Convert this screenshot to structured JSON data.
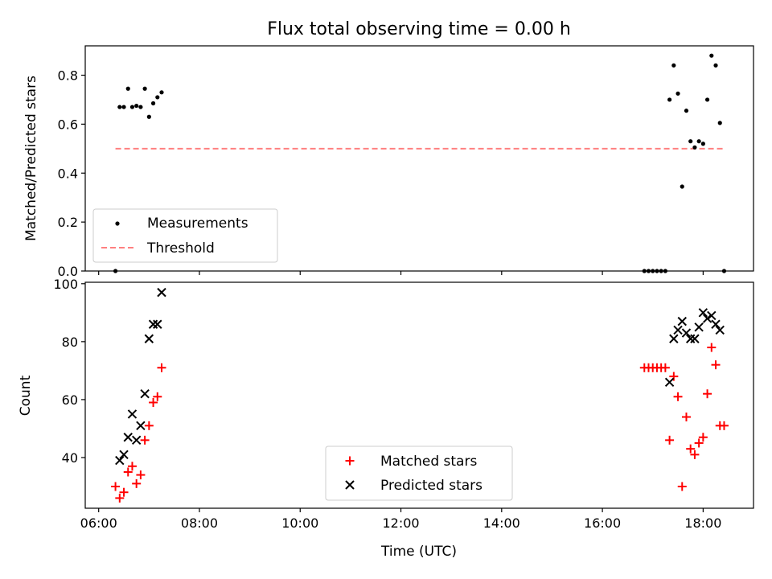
{
  "title": "Flux total observing time = 0.00 h",
  "xlabel": "Time (UTC)",
  "x_ticks": [
    "06:00",
    "08:00",
    "10:00",
    "12:00",
    "14:00",
    "16:00",
    "18:00"
  ],
  "chart_data": [
    {
      "type": "scatter",
      "ylabel": "Matched/Predicted stars",
      "xlim": [
        "05:44",
        "19:00"
      ],
      "ylim": [
        0,
        0.92
      ],
      "y_ticks": [
        "0.0",
        "0.2",
        "0.4",
        "0.6",
        "0.8"
      ],
      "legend_position": "lower-left",
      "legend": [
        {
          "label": "Measurements",
          "marker": "dot",
          "color": "#000000"
        },
        {
          "label": "Threshold",
          "marker": "dashed-line",
          "color": "#ff8080"
        }
      ],
      "series": [
        {
          "name": "Measurements",
          "color": "#000000",
          "points": [
            [
              "06:20",
              0.0
            ],
            [
              "06:25",
              0.67
            ],
            [
              "06:30",
              0.67
            ],
            [
              "06:35",
              0.745
            ],
            [
              "06:40",
              0.67
            ],
            [
              "06:45",
              0.675
            ],
            [
              "06:50",
              0.67
            ],
            [
              "06:55",
              0.745
            ],
            [
              "07:00",
              0.63
            ],
            [
              "07:05",
              0.685
            ],
            [
              "07:10",
              0.71
            ],
            [
              "07:15",
              0.73
            ],
            [
              "16:50",
              0.0
            ],
            [
              "16:55",
              0.0
            ],
            [
              "17:00",
              0.0
            ],
            [
              "17:05",
              0.0
            ],
            [
              "17:10",
              0.0
            ],
            [
              "17:15",
              0.0
            ],
            [
              "17:20",
              0.7
            ],
            [
              "17:25",
              0.84
            ],
            [
              "17:30",
              0.725
            ],
            [
              "17:35",
              0.345
            ],
            [
              "17:40",
              0.655
            ],
            [
              "17:45",
              0.53
            ],
            [
              "17:50",
              0.505
            ],
            [
              "17:55",
              0.53
            ],
            [
              "18:00",
              0.52
            ],
            [
              "18:05",
              0.7
            ],
            [
              "18:10",
              0.88
            ],
            [
              "18:15",
              0.84
            ],
            [
              "18:20",
              0.605
            ],
            [
              "18:25",
              0.0
            ]
          ]
        }
      ],
      "threshold": {
        "name": "Threshold",
        "color": "#ff8080",
        "y": 0.5,
        "x_range": [
          "06:20",
          "18:25"
        ]
      }
    },
    {
      "type": "scatter",
      "ylabel": "Count",
      "xlim": [
        "05:44",
        "19:00"
      ],
      "ylim": [
        22.5,
        100.5
      ],
      "y_ticks": [
        "40",
        "60",
        "80",
        "100"
      ],
      "legend_position": "lower-center",
      "legend": [
        {
          "label": "Matched stars",
          "marker": "plus",
          "color": "#ff0000"
        },
        {
          "label": "Predicted stars",
          "marker": "x",
          "color": "#000000"
        }
      ],
      "series": [
        {
          "name": "Matched stars",
          "marker": "plus",
          "color": "#ff0000",
          "points": [
            [
              "06:20",
              30
            ],
            [
              "06:25",
              26
            ],
            [
              "06:30",
              28
            ],
            [
              "06:35",
              35
            ],
            [
              "06:40",
              37
            ],
            [
              "06:45",
              31
            ],
            [
              "06:50",
              34
            ],
            [
              "06:55",
              46
            ],
            [
              "07:00",
              51
            ],
            [
              "07:05",
              59
            ],
            [
              "07:10",
              61
            ],
            [
              "07:15",
              71
            ],
            [
              "16:50",
              71
            ],
            [
              "16:55",
              71
            ],
            [
              "17:00",
              71
            ],
            [
              "17:05",
              71
            ],
            [
              "17:10",
              71
            ],
            [
              "17:15",
              71
            ],
            [
              "17:20",
              46
            ],
            [
              "17:25",
              68
            ],
            [
              "17:30",
              61
            ],
            [
              "17:35",
              30
            ],
            [
              "17:40",
              54
            ],
            [
              "17:45",
              43
            ],
            [
              "17:50",
              41
            ],
            [
              "17:55",
              45
            ],
            [
              "18:00",
              47
            ],
            [
              "18:05",
              62
            ],
            [
              "18:10",
              78
            ],
            [
              "18:15",
              72
            ],
            [
              "18:20",
              51
            ],
            [
              "18:25",
              51
            ]
          ]
        },
        {
          "name": "Predicted stars",
          "marker": "x",
          "color": "#000000",
          "points": [
            [
              "06:25",
              39
            ],
            [
              "06:30",
              41
            ],
            [
              "06:35",
              47
            ],
            [
              "06:40",
              55
            ],
            [
              "06:45",
              46
            ],
            [
              "06:50",
              51
            ],
            [
              "06:55",
              62
            ],
            [
              "07:00",
              81
            ],
            [
              "07:05",
              86
            ],
            [
              "07:10",
              86
            ],
            [
              "07:15",
              97
            ],
            [
              "17:20",
              66
            ],
            [
              "17:25",
              81
            ],
            [
              "17:30",
              84
            ],
            [
              "17:35",
              87
            ],
            [
              "17:40",
              83
            ],
            [
              "17:45",
              81
            ],
            [
              "17:50",
              81
            ],
            [
              "17:55",
              85
            ],
            [
              "18:00",
              90
            ],
            [
              "18:05",
              88
            ],
            [
              "18:10",
              89
            ],
            [
              "18:15",
              86
            ],
            [
              "18:20",
              84
            ]
          ]
        }
      ]
    }
  ]
}
